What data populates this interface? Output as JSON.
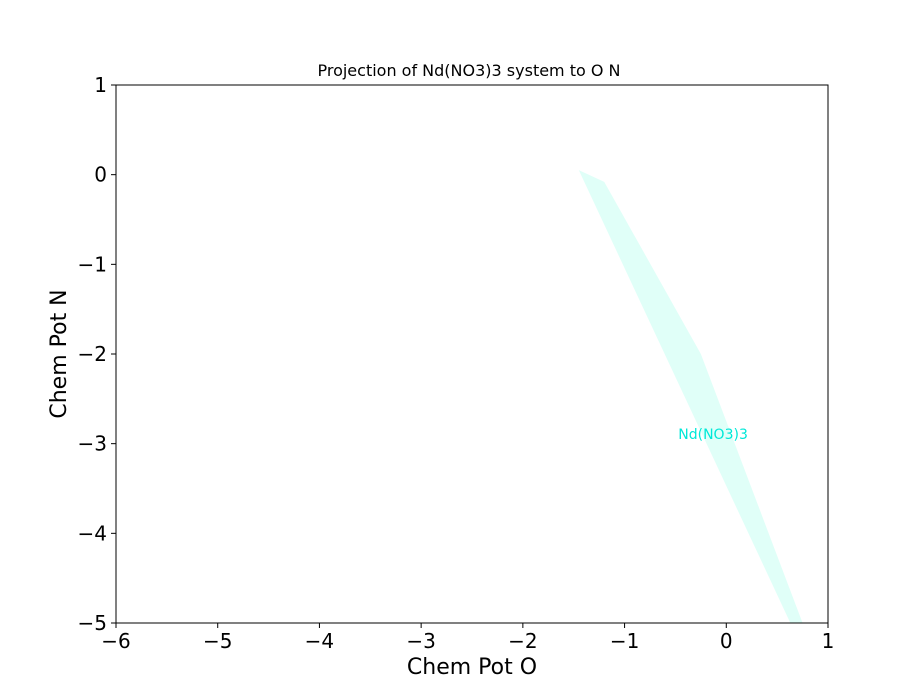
{
  "chart_data": {
    "type": "area",
    "title": "Projection of Nd(NO3)3 system to O N",
    "xlabel": "Chem Pot O",
    "ylabel": "Chem Pot N",
    "xlim": [
      -6,
      1
    ],
    "ylim": [
      -5,
      1
    ],
    "xticks": [
      -6,
      -5,
      -4,
      -3,
      -2,
      -1,
      0,
      1
    ],
    "yticks": [
      1,
      0,
      -1,
      -2,
      -3,
      -4,
      -5
    ],
    "xtick_labels": [
      "−6",
      "−5",
      "−4",
      "−3",
      "−2",
      "−1",
      "0",
      "1"
    ],
    "ytick_labels": [
      "1",
      "0",
      "−1",
      "−2",
      "−3",
      "−4",
      "−5"
    ],
    "grid": false,
    "regions": [
      {
        "name": "Nd(NO3)3",
        "fill_color": "#e0fff8",
        "label_color": "#00e8d8",
        "label_position": [
          -0.13,
          -2.95
        ],
        "polygon": [
          [
            -1.45,
            0.05
          ],
          [
            -1.2,
            -0.08
          ],
          [
            -0.25,
            -2.0
          ],
          [
            0.75,
            -5.0
          ],
          [
            0.63,
            -5.0
          ]
        ]
      }
    ]
  }
}
